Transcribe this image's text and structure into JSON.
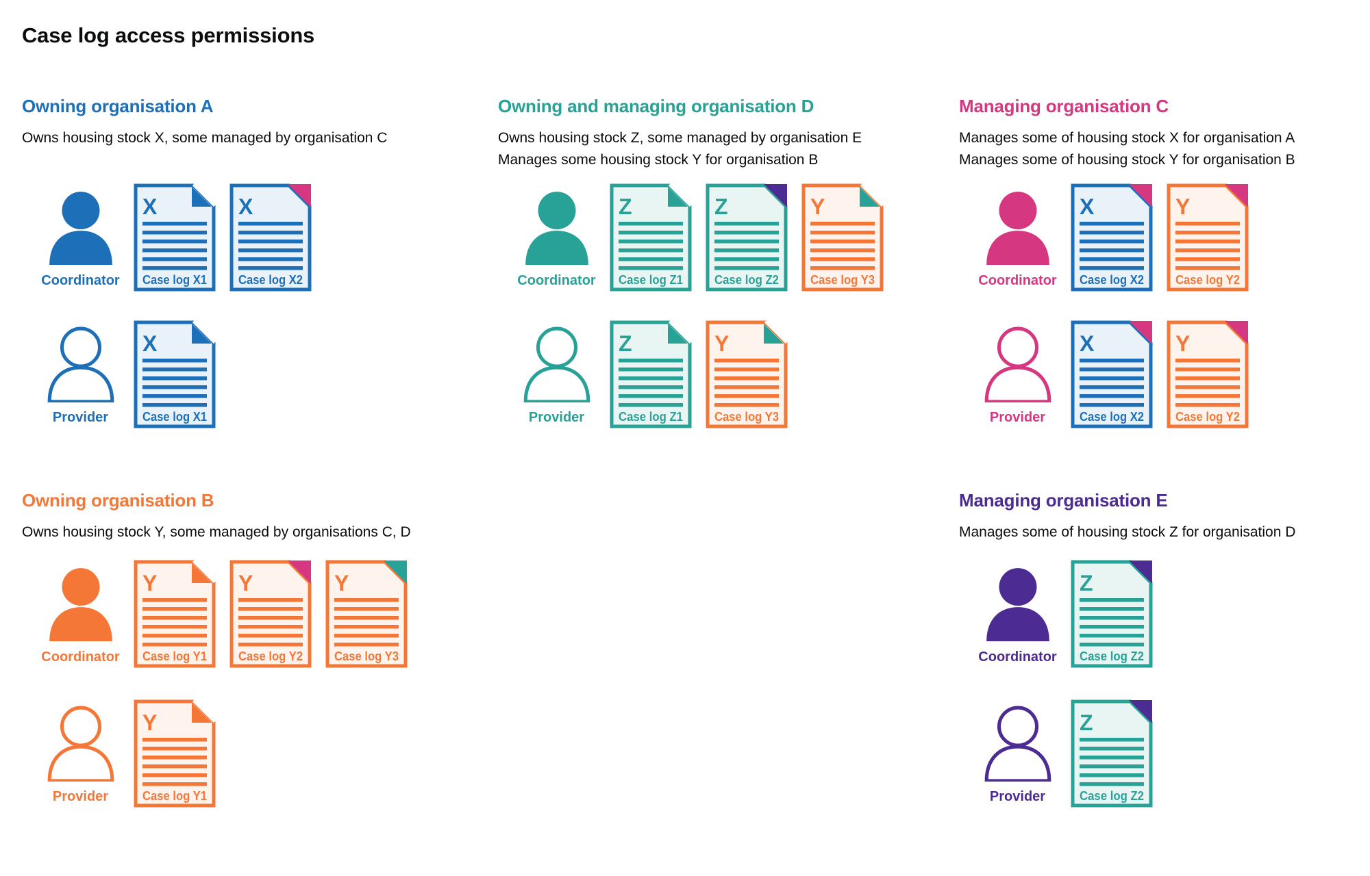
{
  "page": {
    "title": "Case log access permissions",
    "background": "#ffffff",
    "text_color": "#0b0c0c"
  },
  "palette": {
    "blue": "#1d70b8",
    "teal": "#28a197",
    "orange": "#f47738",
    "pink": "#d53880",
    "purple": "#4c2c92",
    "blue_tint": "#e9f1f9",
    "teal_tint": "#e9f5f3",
    "orange_tint": "#fef4ed"
  },
  "sections": [
    {
      "id": "org-a",
      "heading": "Owning organisation A",
      "color": "blue",
      "description_lines": [
        "Owns housing stock X, some managed by organisation C"
      ],
      "rows": [
        {
          "role": "Coordinator",
          "person_style": "filled",
          "docs": [
            {
              "letter": "X",
              "caption": "Case log X1",
              "color": "blue",
              "fold_color": "blue",
              "fold_style": "flap"
            },
            {
              "letter": "X",
              "caption": "Case log X2",
              "color": "blue",
              "fold_color": "pink",
              "fold_style": "corner"
            }
          ]
        },
        {
          "role": "Provider",
          "person_style": "outline",
          "docs": [
            {
              "letter": "X",
              "caption": "Case log X1",
              "color": "blue",
              "fold_color": "blue",
              "fold_style": "flap"
            }
          ]
        }
      ]
    },
    {
      "id": "org-d",
      "heading": "Owning and managing organisation D",
      "color": "teal",
      "description_lines": [
        "Owns housing stock Z, some managed by organisation E",
        "Manages some housing stock Y for organisation B"
      ],
      "rows": [
        {
          "role": "Coordinator",
          "person_style": "filled",
          "docs": [
            {
              "letter": "Z",
              "caption": "Case log Z1",
              "color": "teal",
              "fold_color": "teal",
              "fold_style": "flap"
            },
            {
              "letter": "Z",
              "caption": "Case log Z2",
              "color": "teal",
              "fold_color": "purple",
              "fold_style": "corner"
            },
            {
              "letter": "Y",
              "caption": "Case log Y3",
              "color": "orange",
              "fold_color": "teal",
              "fold_style": "flap"
            }
          ]
        },
        {
          "role": "Provider",
          "person_style": "outline",
          "docs": [
            {
              "letter": "Z",
              "caption": "Case log Z1",
              "color": "teal",
              "fold_color": "teal",
              "fold_style": "flap"
            },
            {
              "letter": "Y",
              "caption": "Case log Y3",
              "color": "orange",
              "fold_color": "teal",
              "fold_style": "flap"
            }
          ]
        }
      ]
    },
    {
      "id": "org-c",
      "heading": "Managing organisation C",
      "color": "pink",
      "description_lines": [
        "Manages some of housing stock X for organisation A",
        "Manages some of housing stock Y for organisation B"
      ],
      "rows": [
        {
          "role": "Coordinator",
          "person_style": "filled",
          "docs": [
            {
              "letter": "X",
              "caption": "Case log X2",
              "color": "blue",
              "fold_color": "pink",
              "fold_style": "corner"
            },
            {
              "letter": "Y",
              "caption": "Case log Y2",
              "color": "orange",
              "fold_color": "pink",
              "fold_style": "corner"
            }
          ]
        },
        {
          "role": "Provider",
          "person_style": "outline",
          "docs": [
            {
              "letter": "X",
              "caption": "Case log X2",
              "color": "blue",
              "fold_color": "pink",
              "fold_style": "corner"
            },
            {
              "letter": "Y",
              "caption": "Case log Y2",
              "color": "orange",
              "fold_color": "pink",
              "fold_style": "corner"
            }
          ]
        }
      ]
    },
    {
      "id": "org-b",
      "heading": "Owning organisation B",
      "color": "orange",
      "description_lines": [
        "Owns housing stock Y, some managed by organisations C, D"
      ],
      "rows": [
        {
          "role": "Coordinator",
          "person_style": "filled",
          "docs": [
            {
              "letter": "Y",
              "caption": "Case log Y1",
              "color": "orange",
              "fold_color": "orange",
              "fold_style": "flap"
            },
            {
              "letter": "Y",
              "caption": "Case log Y2",
              "color": "orange",
              "fold_color": "pink",
              "fold_style": "corner"
            },
            {
              "letter": "Y",
              "caption": "Case log Y3",
              "color": "orange",
              "fold_color": "teal",
              "fold_style": "corner"
            }
          ]
        },
        {
          "role": "Provider",
          "person_style": "outline",
          "docs": [
            {
              "letter": "Y",
              "caption": "Case log Y1",
              "color": "orange",
              "fold_color": "orange",
              "fold_style": "flap"
            }
          ]
        }
      ]
    },
    {
      "id": "org-e",
      "heading": "Managing organisation E",
      "color": "purple",
      "description_lines": [
        "Manages some of housing stock Z for organisation D"
      ],
      "rows": [
        {
          "role": "Coordinator",
          "person_style": "filled",
          "docs": [
            {
              "letter": "Z",
              "caption": "Case log Z2",
              "color": "teal",
              "fold_color": "purple",
              "fold_style": "corner"
            }
          ]
        },
        {
          "role": "Provider",
          "person_style": "outline",
          "docs": [
            {
              "letter": "Z",
              "caption": "Case log Z2",
              "color": "teal",
              "fold_color": "purple",
              "fold_style": "corner"
            }
          ]
        }
      ]
    }
  ]
}
